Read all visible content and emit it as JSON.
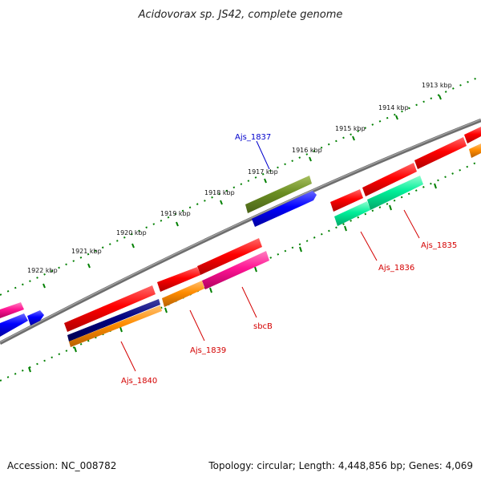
{
  "title": "Acidovorax sp. JS42, complete genome",
  "footer": {
    "accession": "Accession: NC_008782",
    "summary": "Topology: circular; Length: 4,448,856 bp; Genes: 4,069"
  },
  "ticks": [
    "1913 kbp",
    "1914 kbp",
    "1915 kbp",
    "1916 kbp",
    "1917 kbp",
    "1918 kbp",
    "1919 kbp",
    "1920 kbp",
    "1921 kbp",
    "1922 kbp"
  ],
  "gene_labels": {
    "ajs_1837": "Ajs_1837",
    "ajs_1835": "Ajs_1835",
    "ajs_1836": "Ajs_1836",
    "sbcb": "sbcB",
    "ajs_1839": "Ajs_1839",
    "ajs_1840": "Ajs_1840"
  },
  "colors": {
    "backbone": "#808080",
    "tick": "#008000",
    "red": "#ff0000",
    "olive": "#6b8e23",
    "blue": "#0000ff",
    "teal": "#00ee99",
    "pink": "#ff1493",
    "orange": "#ff8c00",
    "navy": "#000080",
    "label_red": "#d40000",
    "label_blue": "#0000cc"
  }
}
